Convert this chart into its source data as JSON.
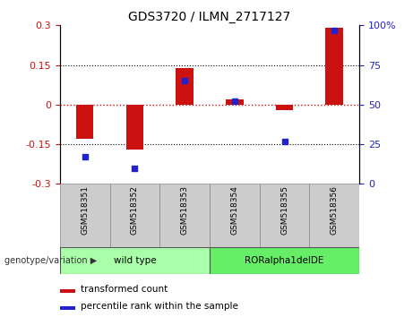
{
  "title": "GDS3720 / ILMN_2717127",
  "categories": [
    "GSM518351",
    "GSM518352",
    "GSM518353",
    "GSM518354",
    "GSM518355",
    "GSM518356"
  ],
  "bar_values": [
    -0.13,
    -0.17,
    0.14,
    0.02,
    -0.02,
    0.29
  ],
  "scatter_values": [
    17,
    10,
    65,
    52,
    27,
    97
  ],
  "ylim_left": [
    -0.3,
    0.3
  ],
  "ylim_right": [
    0,
    100
  ],
  "yticks_left": [
    -0.3,
    -0.15,
    0,
    0.15,
    0.3
  ],
  "yticks_right": [
    0,
    25,
    50,
    75,
    100
  ],
  "bar_color": "#cc1111",
  "scatter_color": "#2222cc",
  "hline0_color": "#cc1111",
  "hline_pm_color": "#000000",
  "group_labels": [
    "wild type",
    "RORalpha1delDE"
  ],
  "group_colors": [
    "#aaffaa",
    "#66ee66"
  ],
  "genotype_label": "genotype/variation",
  "legend_bar_label": "transformed count",
  "legend_scatter_label": "percentile rank within the sample",
  "cell_color": "#cccccc",
  "cell_edge_color": "#888888",
  "background_color": "#ffffff",
  "bar_width": 0.35
}
